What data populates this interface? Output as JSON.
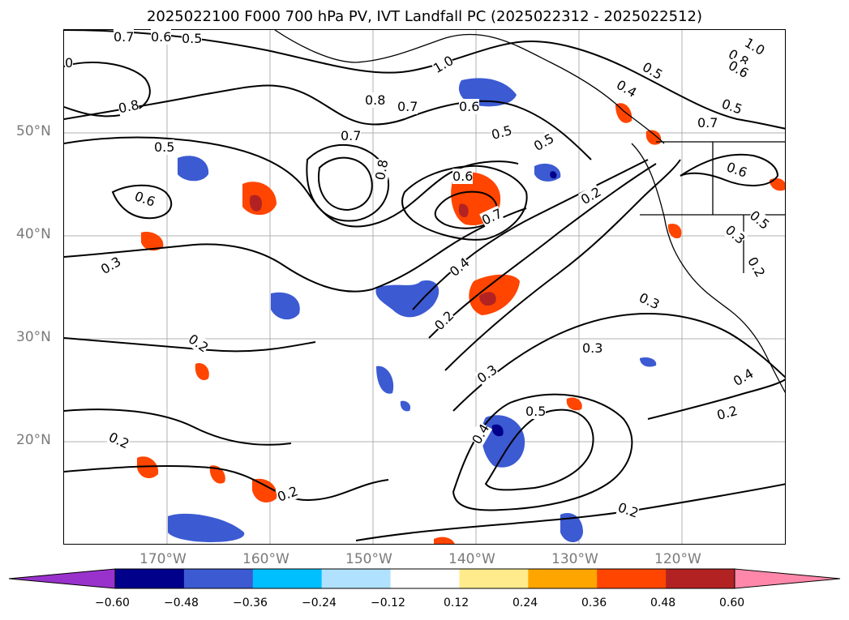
{
  "title": "2025022100 F000 700 hPa PV, IVT Landfall PC (2025022312 - 2025022512)",
  "map": {
    "lat_labels": [
      "50°N",
      "40°N",
      "30°N",
      "20°N"
    ],
    "lon_labels": [
      "170°W",
      "160°W",
      "150°W",
      "140°W",
      "130°W",
      "120°W"
    ],
    "contour_labels": [
      "0.7",
      "0.6",
      "0.5",
      "1.0",
      "0.8",
      "0.7",
      "0.6",
      "0.8",
      "0.5",
      "0.5",
      "0.6",
      "0.7",
      "0.8",
      "0.6",
      "0.7",
      "0.5",
      "0.4",
      "0.2",
      "0.3",
      "0.2",
      "0.3",
      "0.2",
      "0.4",
      "0.5",
      "0.2",
      "0.2",
      "0.3",
      "0.2",
      "0.4",
      "0.2",
      "0.3",
      "0.5",
      "0.4",
      "0.5",
      "0.7",
      "0.6",
      "0.3",
      "0.2",
      "0.8",
      "0.6",
      "1.0",
      "0.5",
      "0"
    ]
  },
  "colorbar": {
    "colors": [
      "#9932cc",
      "#00008b",
      "#3c5ad2",
      "#00bfff",
      "#b0e2ff",
      "#ffffff",
      "#ffeb8c",
      "#ffa500",
      "#ff4500",
      "#b22222",
      "#ff88aa"
    ],
    "tick_labels": [
      "−0.60",
      "−0.48",
      "−0.36",
      "−0.24",
      "−0.12",
      "0.12",
      "0.24",
      "0.36",
      "0.48",
      "0.60"
    ]
  }
}
